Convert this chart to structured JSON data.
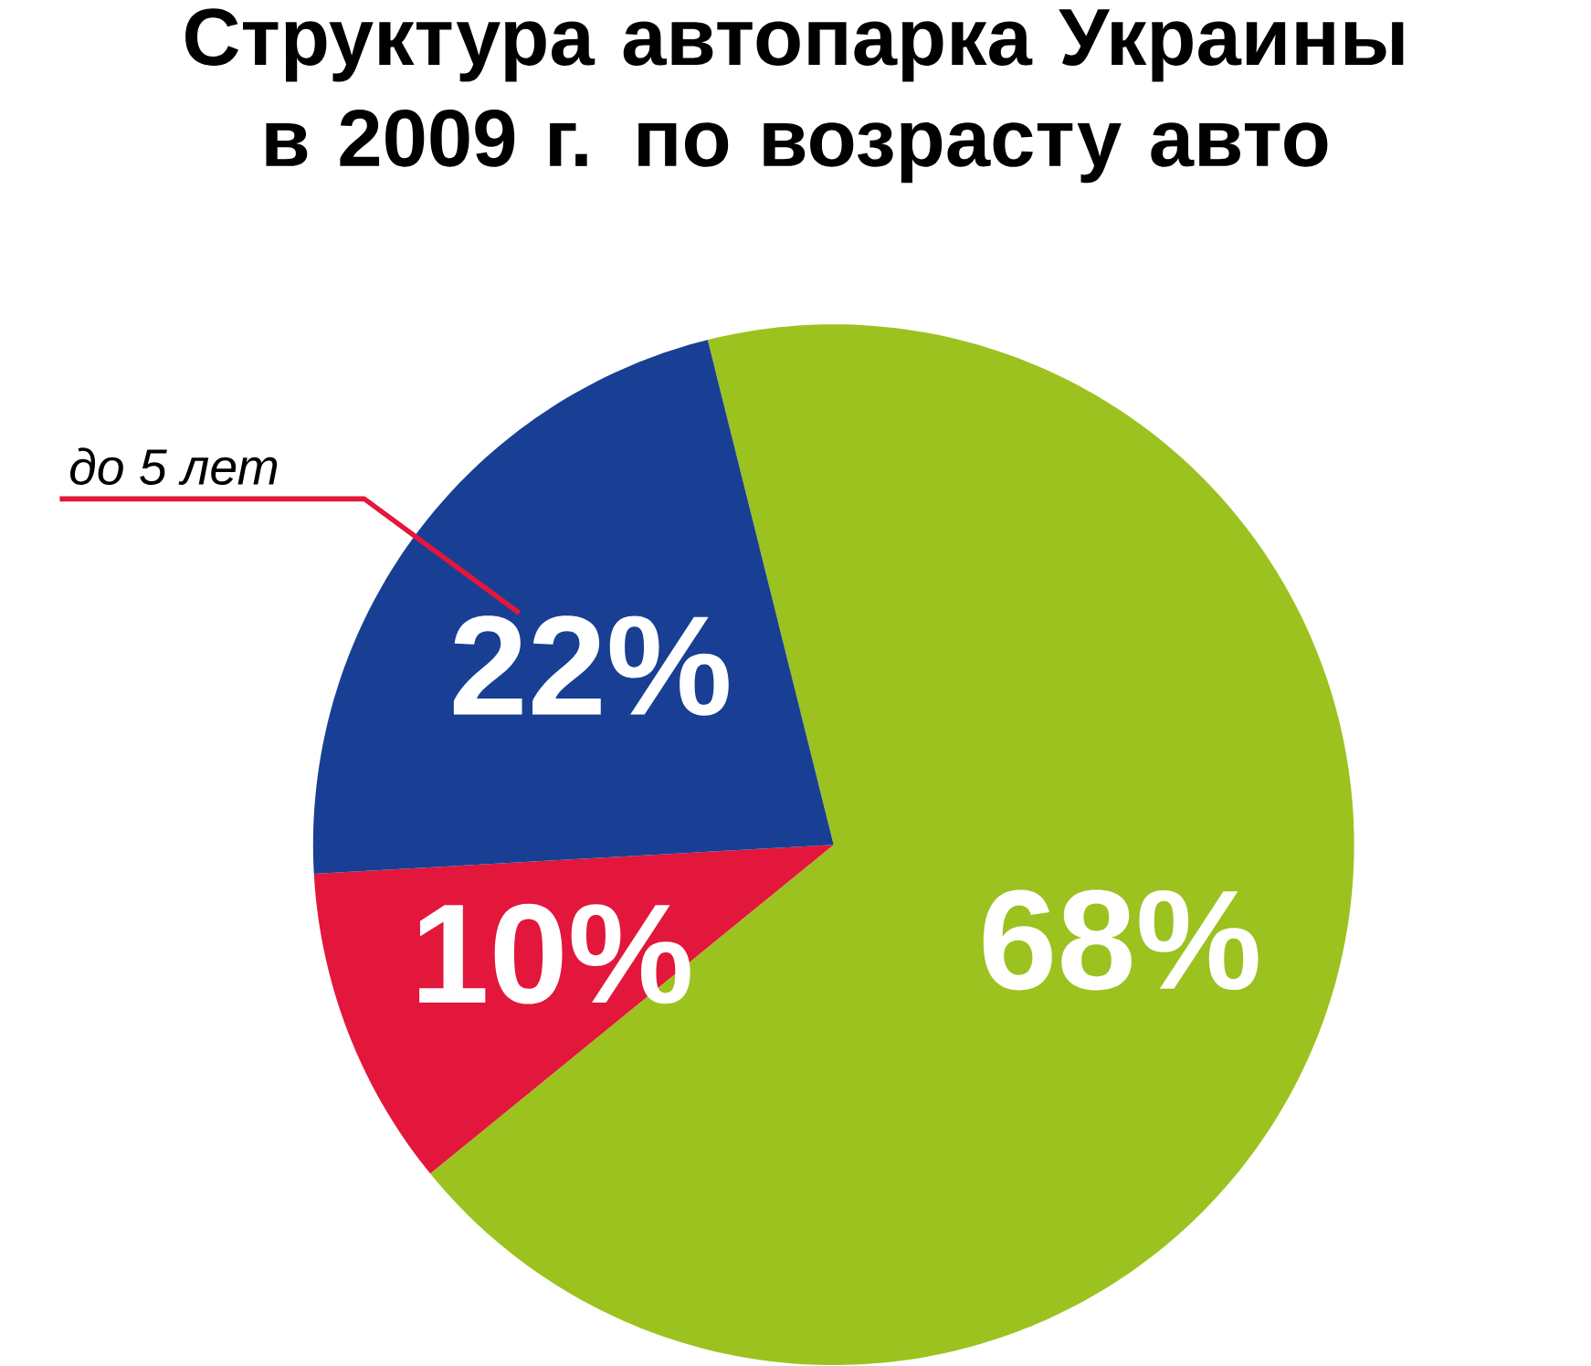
{
  "chart_data": {
    "type": "pie",
    "title": "Структура автопарка Украины в 2009 г. по возрасту авто",
    "categories": [
      null,
      null,
      "до 5 лет"
    ],
    "values": [
      68,
      10,
      22
    ],
    "colors": [
      "#9cc21f",
      "#e2173b",
      "#183f94"
    ],
    "value_labels": [
      "68%",
      "10%",
      "22%"
    ]
  }
}
